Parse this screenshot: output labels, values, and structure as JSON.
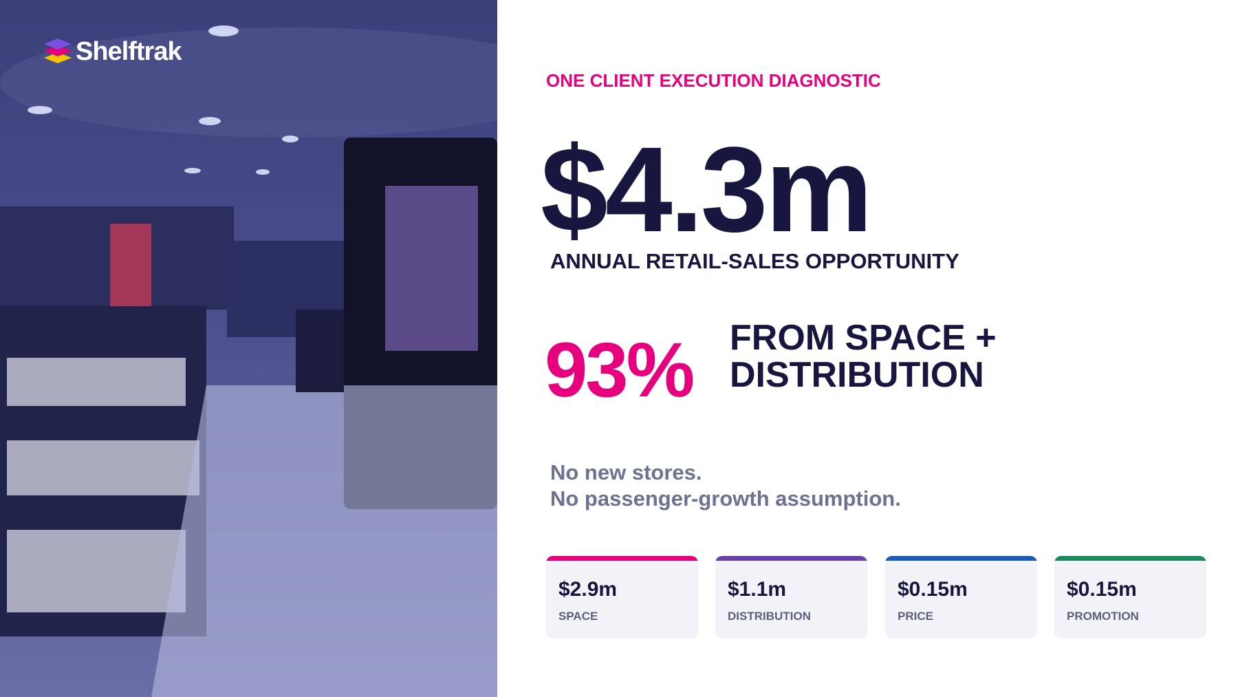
{
  "brand": "Shelftrak",
  "eyebrow": "ONE CLIENT EXECUTION DIAGNOSTIC",
  "headline": {
    "value": "$4.3m",
    "caption": "ANNUAL RETAIL-SALES OPPORTUNITY"
  },
  "share": {
    "value": "93%",
    "lines": [
      "FROM SPACE +",
      "DISTRIBUTION"
    ]
  },
  "notes": [
    "No new stores.",
    "No passenger-growth assumption."
  ],
  "cards": [
    {
      "value": "$2.9m",
      "label": "SPACE"
    },
    {
      "value": "$1.1m",
      "label": "DISTRIBUTION"
    },
    {
      "value": "$0.15m",
      "label": "PRICE"
    },
    {
      "value": "$0.15m",
      "label": "PROMOTION"
    }
  ]
}
